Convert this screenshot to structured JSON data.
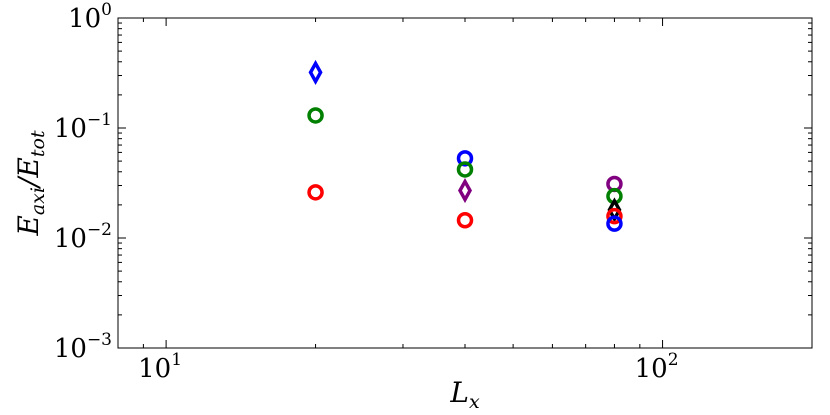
{
  "chart_data": {
    "type": "scatter",
    "title": "",
    "xlabel": {
      "main": "L",
      "sub": "x"
    },
    "ylabel": {
      "num": "E",
      "num_sub": "axi",
      "sep": "/",
      "den": "E",
      "den_sub": "tot"
    },
    "xscale": "log",
    "yscale": "log",
    "xlim": [
      8,
      200
    ],
    "ylim": [
      0.001,
      1
    ],
    "xticks": [
      {
        "value": 10,
        "base": "10",
        "exp": "1"
      },
      {
        "value": 100,
        "base": "10",
        "exp": "2"
      }
    ],
    "yticks": [
      {
        "value": 1,
        "base": "10",
        "exp": "0"
      },
      {
        "value": 0.1,
        "base": "10",
        "exp": "−1"
      },
      {
        "value": 0.01,
        "base": "10",
        "exp": "−2"
      },
      {
        "value": 0.001,
        "base": "10",
        "exp": "−3"
      }
    ],
    "grid": false,
    "legend": "none",
    "points": [
      {
        "x": 20,
        "y": 0.32,
        "marker": "diamond",
        "color": "#0000ff"
      },
      {
        "x": 20,
        "y": 0.13,
        "marker": "circle",
        "color": "#008000"
      },
      {
        "x": 20,
        "y": 0.026,
        "marker": "circle",
        "color": "#ff0000"
      },
      {
        "x": 40,
        "y": 0.053,
        "marker": "circle",
        "color": "#0000ff"
      },
      {
        "x": 40,
        "y": 0.042,
        "marker": "circle",
        "color": "#008000"
      },
      {
        "x": 40,
        "y": 0.027,
        "marker": "diamond",
        "color": "#800080"
      },
      {
        "x": 40,
        "y": 0.0145,
        "marker": "circle",
        "color": "#ff0000"
      },
      {
        "x": 80,
        "y": 0.031,
        "marker": "circle",
        "color": "#800080"
      },
      {
        "x": 80,
        "y": 0.024,
        "marker": "circle",
        "color": "#008000"
      },
      {
        "x": 80,
        "y": 0.018,
        "marker": "diamond",
        "color": "#000000"
      },
      {
        "x": 80,
        "y": 0.0158,
        "marker": "circle",
        "color": "#ff0000"
      },
      {
        "x": 80,
        "y": 0.0135,
        "marker": "circle",
        "color": "#0000ff"
      }
    ]
  }
}
